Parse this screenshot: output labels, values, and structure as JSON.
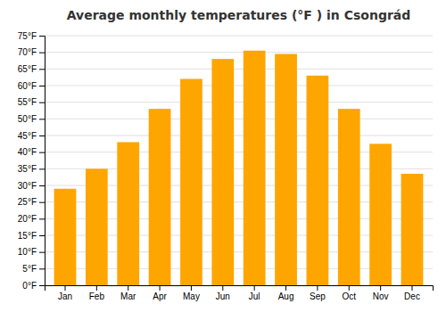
{
  "chart_data": {
    "type": "bar",
    "title": "Average monthly temperatures (°F ) in Csongrád",
    "categories": [
      "Jan",
      "Feb",
      "Mar",
      "Apr",
      "May",
      "Jun",
      "Jul",
      "Aug",
      "Sep",
      "Oct",
      "Nov",
      "Dec"
    ],
    "values": [
      29,
      35,
      43,
      53,
      62,
      68,
      70.5,
      69.5,
      63,
      53,
      42.5,
      33.5
    ],
    "color": "#FFA500",
    "ylim": [
      0,
      75
    ],
    "yticks": [
      {
        "value": 0,
        "label": "0°F"
      },
      {
        "value": 5,
        "label": "5°F"
      },
      {
        "value": 10,
        "label": "10°F"
      },
      {
        "value": 15,
        "label": "15°F"
      },
      {
        "value": 20,
        "label": "20°F"
      },
      {
        "value": 25,
        "label": "25°F"
      },
      {
        "value": 30,
        "label": "30°F"
      },
      {
        "value": 35,
        "label": "35°F"
      },
      {
        "value": 40,
        "label": "40°F"
      },
      {
        "value": 45,
        "label": "45°F"
      },
      {
        "value": 50,
        "label": "50°F"
      },
      {
        "value": 55,
        "label": "55°F"
      },
      {
        "value": 60,
        "label": "60°F"
      },
      {
        "value": 65,
        "label": "65°F"
      },
      {
        "value": 70,
        "label": "70°F"
      },
      {
        "value": 75,
        "label": "75°F"
      }
    ],
    "grid": true
  }
}
